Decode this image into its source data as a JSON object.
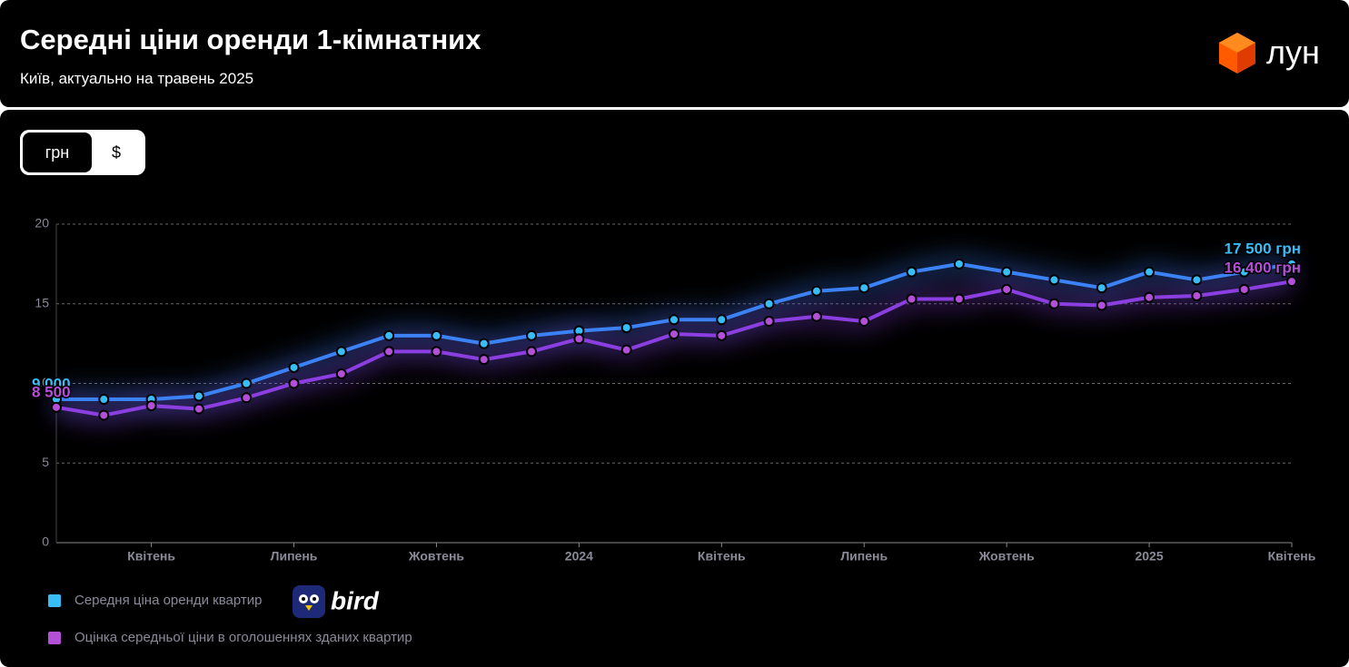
{
  "header": {
    "title": "Середні ціни оренди 1-кімнатних",
    "subtitle": "Київ, актуально на травень 2025",
    "logo": "лун"
  },
  "toggle": {
    "options": [
      "грн",
      "$"
    ],
    "active": 0
  },
  "sponsor": "bird",
  "chart_data": {
    "type": "line",
    "categories": [
      null,
      null,
      "Квітень",
      null,
      null,
      "Липень",
      null,
      null,
      "Жовтень",
      null,
      null,
      "2024",
      null,
      null,
      "Квітень",
      null,
      null,
      "Липень",
      null,
      null,
      "Жовтень",
      null,
      null,
      "2025",
      null,
      null,
      "Квітень"
    ],
    "ylim": [
      0,
      20
    ],
    "yticks": [
      0,
      5,
      10,
      15,
      20
    ],
    "grid": true,
    "series": [
      {
        "name": "Середня ціна оренди квартир",
        "color": "#3b82f6",
        "label_color": "#38bdf8",
        "values": [
          9.0,
          9.0,
          9.0,
          9.2,
          10.0,
          11.0,
          12.0,
          13.0,
          13.0,
          12.5,
          13.0,
          13.3,
          13.5,
          14.0,
          14.0,
          15.0,
          15.8,
          16.0,
          17.0,
          17.5,
          17.0,
          16.5,
          16.0,
          17.0,
          16.5,
          17.0,
          17.5
        ],
        "value_labels": [
          "9 000",
          null,
          null,
          null,
          null,
          null,
          null,
          null,
          null,
          null,
          null,
          null,
          null,
          null,
          null,
          null,
          null,
          null,
          null,
          null,
          null,
          null,
          null,
          null,
          null,
          null,
          "17 500 грн"
        ]
      },
      {
        "name": "Оцінка середньої ціни в оголошеннях зданих квартир",
        "color": "#8b3fe0",
        "label_color": "#b44fd8",
        "values": [
          8.5,
          8.0,
          8.6,
          8.4,
          9.1,
          10.0,
          10.6,
          12.0,
          12.0,
          11.5,
          12.0,
          12.8,
          12.1,
          13.1,
          13.0,
          13.9,
          14.2,
          13.9,
          15.3,
          15.3,
          15.9,
          15.0,
          14.9,
          15.4,
          15.5,
          15.9,
          16.4
        ],
        "value_labels": [
          "8 500",
          null,
          null,
          null,
          null,
          null,
          null,
          null,
          null,
          null,
          null,
          null,
          null,
          null,
          null,
          null,
          null,
          null,
          null,
          null,
          null,
          null,
          null,
          null,
          null,
          null,
          "16 400 грн"
        ]
      }
    ]
  }
}
